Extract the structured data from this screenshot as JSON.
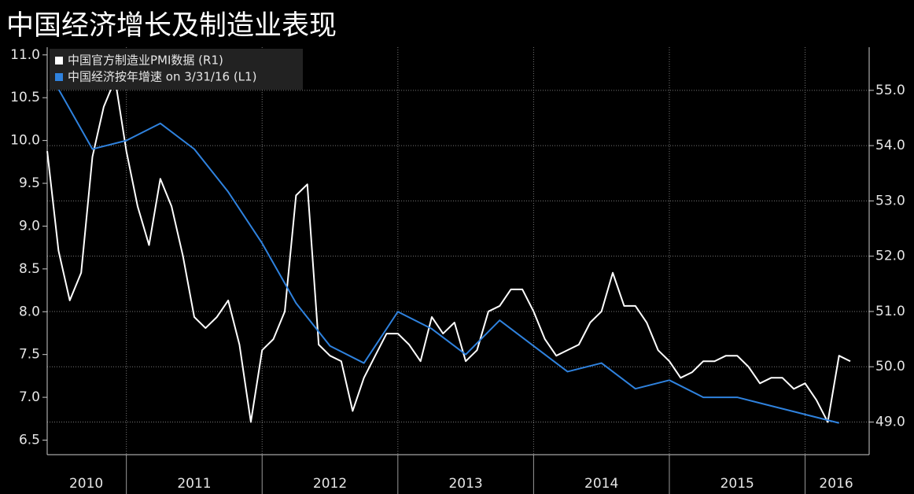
{
  "chart_data": {
    "type": "line",
    "title": "中国经济增长及制造业表现",
    "xlim": [
      2010.4167,
      2016.472
    ],
    "xticks": [
      {
        "value": 2010.704,
        "label": "2010"
      },
      {
        "value": 2011.5,
        "label": "2011"
      },
      {
        "value": 2012.5,
        "label": "2012"
      },
      {
        "value": 2013.5,
        "label": "2013"
      },
      {
        "value": 2014.5,
        "label": "2014"
      },
      {
        "value": 2015.5,
        "label": "2015"
      },
      {
        "value": 2016.229,
        "label": "2016"
      }
    ],
    "x_grid_ticks": [
      2011,
      2012,
      2013,
      2014,
      2015,
      2016
    ],
    "ylim": [
      6.33,
      11.09
    ],
    "yticks": [
      {
        "value": 6.5,
        "label": "6.5"
      },
      {
        "value": 7,
        "label": "7.0"
      },
      {
        "value": 7.5,
        "label": "7.5"
      },
      {
        "value": 8,
        "label": "8.0"
      },
      {
        "value": 8.5,
        "label": "8.5"
      },
      {
        "value": 9,
        "label": "9.0"
      },
      {
        "value": 9.5,
        "label": "9.5"
      },
      {
        "value": 10,
        "label": "10.0"
      },
      {
        "value": 10.5,
        "label": "10.5"
      },
      {
        "value": 11,
        "label": "11.0"
      }
    ],
    "y2lim": [
      48.41,
      55.78
    ],
    "y2ticks": [
      {
        "value": 49,
        "label": "49.0"
      },
      {
        "value": 50,
        "label": "50.0"
      },
      {
        "value": 51,
        "label": "51.0"
      },
      {
        "value": 52,
        "label": "52.0"
      },
      {
        "value": 53,
        "label": "53.0"
      },
      {
        "value": 54,
        "label": "54.0"
      },
      {
        "value": 55,
        "label": "55.0"
      }
    ],
    "grid": true,
    "legend": "upper left",
    "series": [
      {
        "name": "中国官方制造业PMI数据 (R1)",
        "color": "#ffffff",
        "axis": "y2",
        "x": [
          2010.417,
          2010.5,
          2010.583,
          2010.667,
          2010.75,
          2010.833,
          2010.917,
          2011,
          2011.083,
          2011.167,
          2011.25,
          2011.333,
          2011.417,
          2011.5,
          2011.583,
          2011.667,
          2011.75,
          2011.833,
          2011.917,
          2012,
          2012.083,
          2012.167,
          2012.25,
          2012.333,
          2012.417,
          2012.5,
          2012.583,
          2012.667,
          2012.75,
          2012.833,
          2012.917,
          2013,
          2013.083,
          2013.167,
          2013.25,
          2013.333,
          2013.417,
          2013.5,
          2013.583,
          2013.667,
          2013.75,
          2013.833,
          2013.917,
          2014,
          2014.083,
          2014.167,
          2014.25,
          2014.333,
          2014.417,
          2014.5,
          2014.583,
          2014.667,
          2014.75,
          2014.833,
          2014.917,
          2015,
          2015.083,
          2015.167,
          2015.25,
          2015.333,
          2015.417,
          2015.5,
          2015.583,
          2015.667,
          2015.75,
          2015.833,
          2015.917,
          2016,
          2016.083,
          2016.167,
          2016.25,
          2016.333
        ],
        "values": [
          53.9,
          52.1,
          51.2,
          51.7,
          53.8,
          54.7,
          55.2,
          53.9,
          52.9,
          52.2,
          53.4,
          52.9,
          52.0,
          50.9,
          50.7,
          50.9,
          51.2,
          50.4,
          49.0,
          50.3,
          50.5,
          51.0,
          53.1,
          53.3,
          50.4,
          50.2,
          50.1,
          49.2,
          49.8,
          50.2,
          50.6,
          50.6,
          50.4,
          50.1,
          50.9,
          50.6,
          50.8,
          50.1,
          50.3,
          51.0,
          51.1,
          51.4,
          51.4,
          51.0,
          50.5,
          50.2,
          50.3,
          50.4,
          50.8,
          51.0,
          51.7,
          51.1,
          51.1,
          50.8,
          50.3,
          50.1,
          49.8,
          49.9,
          50.1,
          50.1,
          50.2,
          50.2,
          50.0,
          49.7,
          49.8,
          49.8,
          49.6,
          49.7,
          49.4,
          49.0,
          50.2,
          50.1
        ]
      },
      {
        "name": "中国经济按年增速 on 3/31/16 (L1)",
        "color": "#2f82de",
        "axis": "y",
        "x": [
          2010.5,
          2010.75,
          2011,
          2011.25,
          2011.5,
          2011.75,
          2012,
          2012.25,
          2012.5,
          2012.75,
          2013,
          2013.25,
          2013.5,
          2013.75,
          2014,
          2014.25,
          2014.5,
          2014.75,
          2015,
          2015.25,
          2015.5,
          2015.75,
          2016,
          2016.25
        ],
        "values": [
          10.6,
          9.9,
          10.0,
          10.2,
          9.9,
          9.4,
          8.8,
          8.1,
          7.6,
          7.4,
          8.0,
          7.8,
          7.5,
          7.9,
          7.6,
          7.3,
          7.4,
          7.1,
          7.2,
          7.0,
          7.0,
          6.9,
          6.8,
          6.7
        ]
      }
    ]
  }
}
